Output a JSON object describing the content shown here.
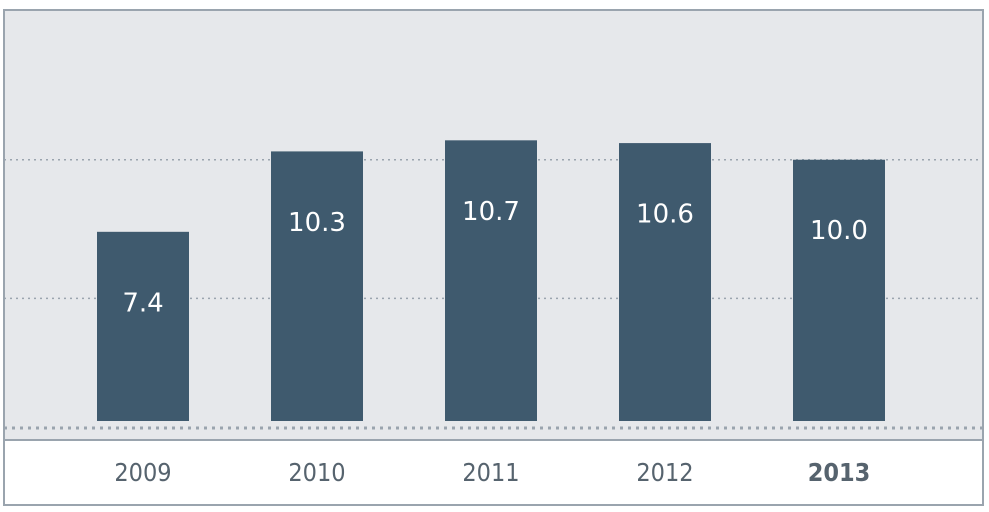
{
  "chart_data": {
    "type": "bar",
    "categories": [
      "2009",
      "2010",
      "2011",
      "2012",
      "2013"
    ],
    "values": [
      7.4,
      10.3,
      10.7,
      10.6,
      10.0
    ],
    "value_labels": [
      "7.4",
      "10.3",
      "10.7",
      "10.6",
      "10.0"
    ],
    "color": "#3f5a6e",
    "ylim": [
      0,
      15.4
    ],
    "yticks": [
      5,
      10
    ],
    "grid": true,
    "bold_index": 4
  }
}
